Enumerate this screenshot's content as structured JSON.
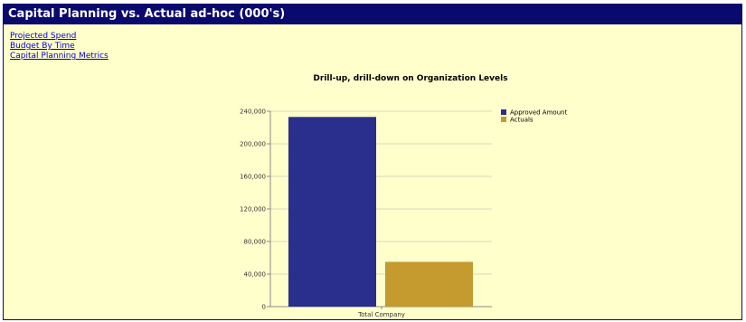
{
  "header": {
    "title": "Capital Planning vs. Actual ad-hoc (000's)"
  },
  "links": [
    {
      "label": "Projected Spend"
    },
    {
      "label": "Budget By Time"
    },
    {
      "label": "Capital Planning Metrics"
    }
  ],
  "colors": {
    "header_bg": "#0a0a6e",
    "page_bg": "#ffffcc",
    "link": "#0000cc"
  },
  "chart_data": {
    "type": "bar",
    "title": "Drill-up, drill-down on Organization Levels",
    "categories": [
      "Total Company"
    ],
    "series": [
      {
        "name": "Approved Amount",
        "values": [
          233000
        ],
        "color": "#2a2e8c"
      },
      {
        "name": "Actuals",
        "values": [
          55000
        ],
        "color": "#c59a2e"
      }
    ],
    "y_ticks": [
      "0",
      "40,000",
      "80,000",
      "120,000",
      "160,000",
      "200,000",
      "240,000"
    ],
    "ylim": [
      0,
      240000
    ],
    "grid": true,
    "legend": "top-right",
    "xlabel": "",
    "ylabel": ""
  }
}
